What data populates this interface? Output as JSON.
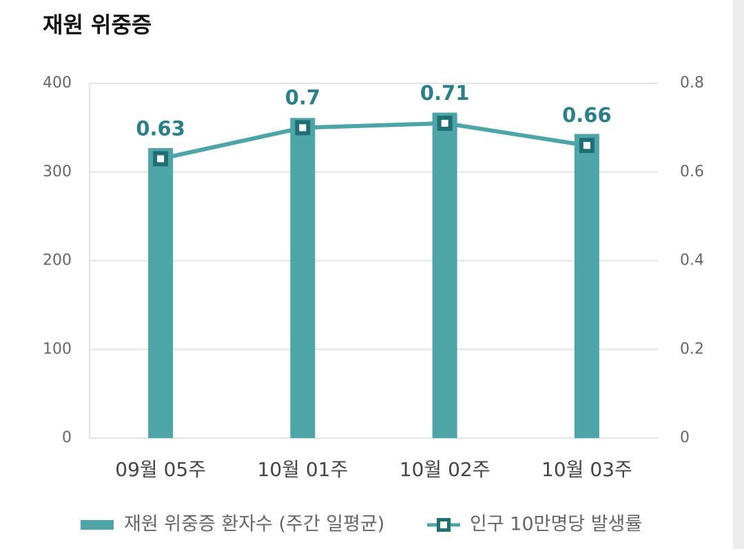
{
  "chart_data": {
    "type": "combo",
    "title": "재원 위중증",
    "categories": [
      "09월 05주",
      "10월 01주",
      "10월 02주",
      "10월 03주"
    ],
    "series": [
      {
        "name": "재원 위중증 환자수 (주간 일평균)",
        "type": "bar",
        "color": "#4ea5a7",
        "values": [
          327,
          361,
          367,
          343
        ]
      },
      {
        "name": "인구 10만명당 발생률",
        "type": "line",
        "axis": "y2",
        "color": "#4ea5a7",
        "marker_color": "#1f6f75",
        "values": [
          0.63,
          0.7,
          0.71,
          0.66
        ]
      }
    ],
    "ylim": [
      0,
      400
    ],
    "yticks": [
      0,
      100,
      200,
      300,
      400
    ],
    "y2lim": [
      0,
      0.8
    ],
    "y2ticks": [
      0,
      0.2,
      0.4,
      0.6,
      0.8
    ],
    "grid": true,
    "legend": "bottom"
  }
}
